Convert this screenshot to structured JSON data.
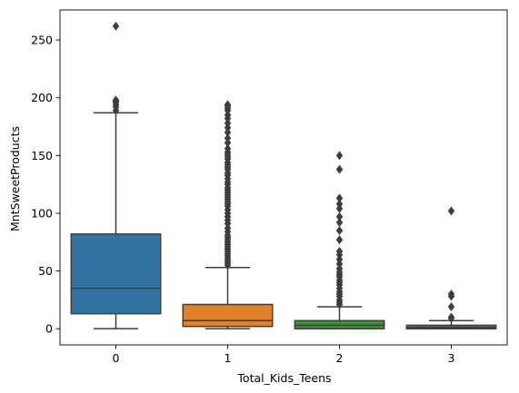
{
  "chart_data": {
    "type": "box",
    "xlabel": "Total_Kids_Teens",
    "ylabel": "MntSweetProducts",
    "ylim": [
      -14,
      276
    ],
    "yticks": [
      0,
      50,
      100,
      150,
      200,
      250
    ],
    "grid": false,
    "categories": [
      "0",
      "1",
      "2",
      "3"
    ],
    "boxes": [
      {
        "category": "0",
        "color": "#3274a1",
        "whisker_low": 0,
        "q1": 13,
        "median": 35,
        "q3": 82,
        "whisker_high": 187,
        "outliers": [
          189,
          192,
          194,
          196,
          197,
          198,
          262
        ]
      },
      {
        "category": "1",
        "color": "#e1812c",
        "whisker_low": 0,
        "q1": 2,
        "median": 7,
        "q3": 21,
        "whisker_high": 53,
        "outliers": [
          55,
          57,
          59,
          61,
          63,
          65,
          67,
          69,
          71,
          73,
          75,
          77,
          79,
          81,
          84,
          87,
          91,
          94,
          97,
          100,
          103,
          106,
          108,
          110,
          112,
          114,
          116,
          118,
          120,
          122,
          125,
          127,
          130,
          133,
          135,
          138,
          140,
          142,
          144,
          147,
          149,
          151,
          153,
          156,
          161,
          165,
          170,
          174,
          178,
          182,
          185,
          189,
          191,
          193,
          194
        ]
      },
      {
        "category": "2",
        "color": "#3a923a",
        "whisker_low": 0,
        "q1": 0,
        "median": 3,
        "q3": 7,
        "whisker_high": 19,
        "outliers": [
          21,
          23,
          25,
          28,
          30,
          32,
          35,
          38,
          40,
          42,
          45,
          47,
          49,
          52,
          56,
          60,
          64,
          67,
          77,
          85,
          92,
          97,
          104,
          108,
          113,
          138,
          150
        ]
      },
      {
        "category": "3",
        "color": "#c03d3e",
        "whisker_low": 0,
        "q1": 0,
        "median": 1,
        "q3": 3,
        "whisker_high": 7,
        "outliers": [
          9,
          10,
          19,
          28,
          30,
          102
        ]
      }
    ]
  }
}
